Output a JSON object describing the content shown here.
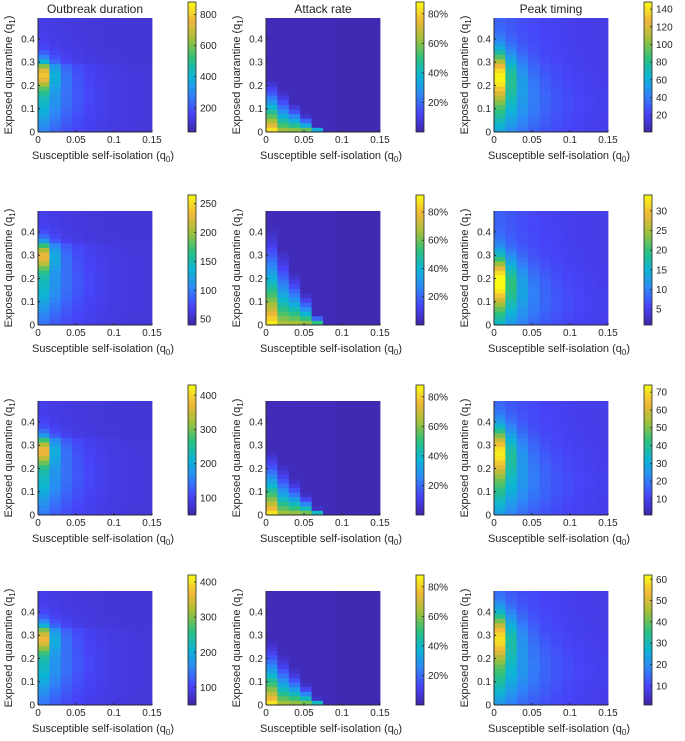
{
  "colors": {
    "axis": "#262626",
    "parula": [
      "#3e26a8",
      "#4743f8",
      "#2e87f7",
      "#0cb5d4",
      "#2ec17c",
      "#a2c03a",
      "#f0b739",
      "#f9fb15"
    ]
  },
  "axis_labels": {
    "xlabel_main": "Susceptible self-isolation (q",
    "xlabel_sub": "0",
    "xlabel_end": ")",
    "ylabel_main": "Exposed quarantine (q",
    "ylabel_sub": "1",
    "ylabel_end": ")"
  },
  "x_ticks": [
    "0",
    "0.05",
    "0.1",
    "0.15"
  ],
  "y_ticks": [
    "0",
    "0.1",
    "0.2",
    "0.3",
    "0.4"
  ],
  "chart_data": [
    {
      "type": "heatmap",
      "row": 0,
      "col": 0,
      "title": "Outbreak duration",
      "metric": "duration",
      "zlim": [
        45,
        880
      ],
      "colorbar_ticks": [
        "200",
        "400",
        "600",
        "800"
      ],
      "colorbar_values": [
        200,
        400,
        600,
        800
      ],
      "xlim": [
        0,
        0.15
      ],
      "ylim": [
        0,
        0.49
      ],
      "peak_q1": 0.25,
      "peak_value": 880
    },
    {
      "type": "heatmap",
      "row": 0,
      "col": 1,
      "title": "Attack rate",
      "metric": "attack",
      "zlim": [
        0,
        0.88
      ],
      "colorbar_ticks": [
        "20%",
        "40%",
        "60%",
        "80%"
      ],
      "colorbar_values": [
        0.2,
        0.4,
        0.6,
        0.8
      ],
      "xlim": [
        0,
        0.15
      ],
      "ylim": [
        0,
        0.49
      ],
      "cutoff_q1": 0.25,
      "peak_value": 0.88
    },
    {
      "type": "heatmap",
      "row": 0,
      "col": 2,
      "title": "Peak timing",
      "metric": "timing",
      "zlim": [
        1,
        148
      ],
      "colorbar_ticks": [
        "20",
        "40",
        "60",
        "80",
        "100",
        "120",
        "140"
      ],
      "colorbar_values": [
        20,
        40,
        60,
        80,
        100,
        120,
        140
      ],
      "xlim": [
        0,
        0.15
      ],
      "ylim": [
        0,
        0.49
      ],
      "peak_q1": 0.25,
      "peak_value": 148
    },
    {
      "type": "heatmap",
      "row": 1,
      "col": 0,
      "title": "",
      "metric": "duration",
      "zlim": [
        40,
        265
      ],
      "colorbar_ticks": [
        "50",
        "100",
        "150",
        "200",
        "250"
      ],
      "colorbar_values": [
        50,
        100,
        150,
        200,
        250
      ],
      "xlim": [
        0,
        0.15
      ],
      "ylim": [
        0,
        0.49
      ],
      "peak_q1": 0.3,
      "peak_value": 265
    },
    {
      "type": "heatmap",
      "row": 1,
      "col": 1,
      "title": "",
      "metric": "attack",
      "zlim": [
        0,
        0.92
      ],
      "colorbar_ticks": [
        "20%",
        "40%",
        "60%",
        "80%"
      ],
      "colorbar_values": [
        0.2,
        0.4,
        0.6,
        0.8
      ],
      "xlim": [
        0,
        0.15
      ],
      "ylim": [
        0,
        0.49
      ],
      "cutoff_q1": 0.45,
      "peak_value": 0.92
    },
    {
      "type": "heatmap",
      "row": 1,
      "col": 2,
      "title": "",
      "metric": "timing",
      "zlim": [
        1,
        34
      ],
      "colorbar_ticks": [
        "5",
        "10",
        "15",
        "20",
        "25",
        "30"
      ],
      "colorbar_values": [
        5,
        10,
        15,
        20,
        25,
        30
      ],
      "xlim": [
        0,
        0.15
      ],
      "ylim": [
        0,
        0.49
      ],
      "peak_q1": 0.2,
      "peak_value": 34
    },
    {
      "type": "heatmap",
      "row": 2,
      "col": 0,
      "title": "",
      "metric": "duration",
      "zlim": [
        50,
        430
      ],
      "colorbar_ticks": [
        "100",
        "200",
        "300",
        "400"
      ],
      "colorbar_values": [
        100,
        200,
        300,
        400
      ],
      "xlim": [
        0,
        0.15
      ],
      "ylim": [
        0,
        0.49
      ],
      "peak_q1": 0.28,
      "peak_value": 430
    },
    {
      "type": "heatmap",
      "row": 2,
      "col": 1,
      "title": "",
      "metric": "attack",
      "zlim": [
        0,
        0.88
      ],
      "colorbar_ticks": [
        "20%",
        "40%",
        "60%",
        "80%"
      ],
      "colorbar_values": [
        0.2,
        0.4,
        0.6,
        0.8
      ],
      "xlim": [
        0,
        0.15
      ],
      "ylim": [
        0,
        0.49
      ],
      "cutoff_q1": 0.3,
      "peak_value": 0.88
    },
    {
      "type": "heatmap",
      "row": 2,
      "col": 2,
      "title": "",
      "metric": "timing",
      "zlim": [
        1,
        74
      ],
      "colorbar_ticks": [
        "10",
        "20",
        "30",
        "40",
        "50",
        "60",
        "70"
      ],
      "colorbar_values": [
        10,
        20,
        30,
        40,
        50,
        60,
        70
      ],
      "xlim": [
        0,
        0.15
      ],
      "ylim": [
        0,
        0.49
      ],
      "peak_q1": 0.28,
      "peak_value": 74
    },
    {
      "type": "heatmap",
      "row": 3,
      "col": 0,
      "title": "",
      "metric": "duration",
      "zlim": [
        50,
        420
      ],
      "colorbar_ticks": [
        "100",
        "200",
        "300",
        "400"
      ],
      "colorbar_values": [
        100,
        200,
        300,
        400
      ],
      "xlim": [
        0,
        0.15
      ],
      "ylim": [
        0,
        0.49
      ],
      "peak_q1": 0.29,
      "peak_value": 420
    },
    {
      "type": "heatmap",
      "row": 3,
      "col": 1,
      "title": "",
      "metric": "attack",
      "zlim": [
        0,
        0.88
      ],
      "colorbar_ticks": [
        "20%",
        "40%",
        "60%",
        "80%"
      ],
      "colorbar_values": [
        0.2,
        0.4,
        0.6,
        0.8
      ],
      "xlim": [
        0,
        0.15
      ],
      "ylim": [
        0,
        0.49
      ],
      "cutoff_q1": 0.3,
      "peak_value": 0.88
    },
    {
      "type": "heatmap",
      "row": 3,
      "col": 2,
      "title": "",
      "metric": "timing",
      "zlim": [
        1,
        62
      ],
      "colorbar_ticks": [
        "10",
        "20",
        "30",
        "40",
        "50",
        "60"
      ],
      "colorbar_values": [
        10,
        20,
        30,
        40,
        50,
        60
      ],
      "xlim": [
        0,
        0.15
      ],
      "ylim": [
        0,
        0.49
      ],
      "peak_q1": 0.3,
      "peak_value": 62
    }
  ]
}
